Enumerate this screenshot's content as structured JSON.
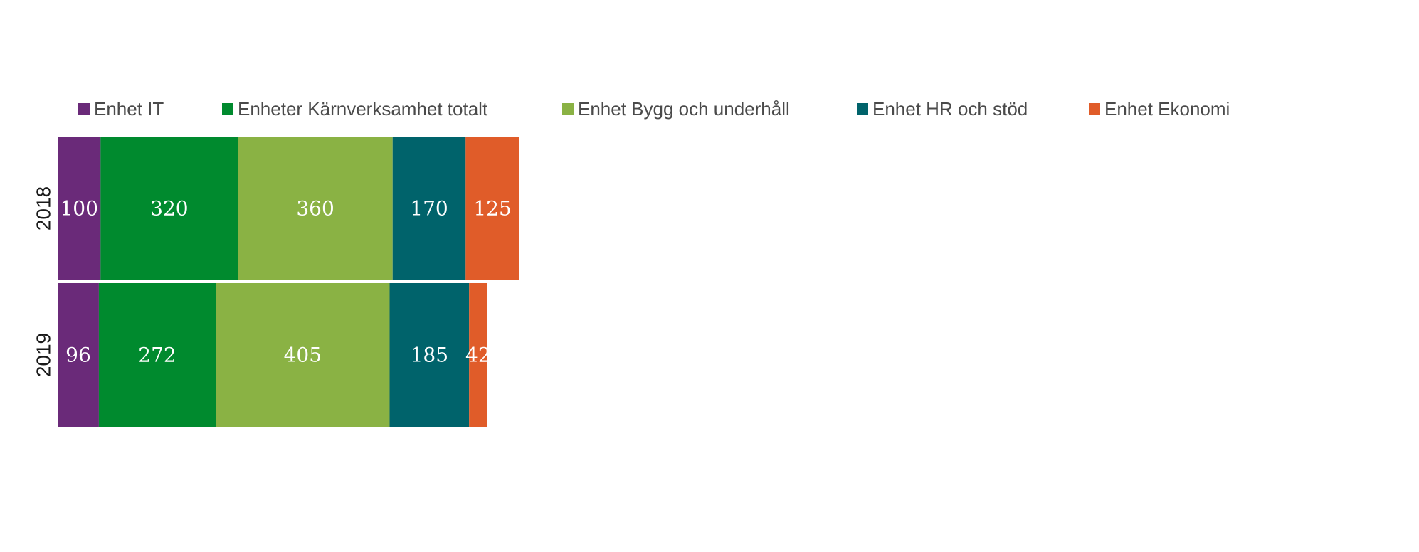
{
  "chart_data": {
    "type": "bar",
    "orientation": "horizontal",
    "stacked": true,
    "categories": [
      "2018",
      "2019"
    ],
    "series": [
      {
        "name": "Enhet IT",
        "values": [
          100,
          96
        ],
        "color": "#6a2a79"
      },
      {
        "name": "Enheter Kärnverksamhet totalt",
        "values": [
          320,
          272
        ],
        "color": "#008a2e"
      },
      {
        "name": "Enhet Bygg och underhåll",
        "values": [
          360,
          405
        ],
        "color": "#8ab244"
      },
      {
        "name": "Enhet HR och stöd",
        "values": [
          170,
          185
        ],
        "color": "#00636b"
      },
      {
        "name": "Enhet Ekonomi",
        "values": [
          125,
          42
        ],
        "color": "#e05c29"
      }
    ],
    "data_labels": true,
    "legend_position": "top-left",
    "grid": false,
    "title": "",
    "xlabel": "",
    "ylabel": ""
  }
}
